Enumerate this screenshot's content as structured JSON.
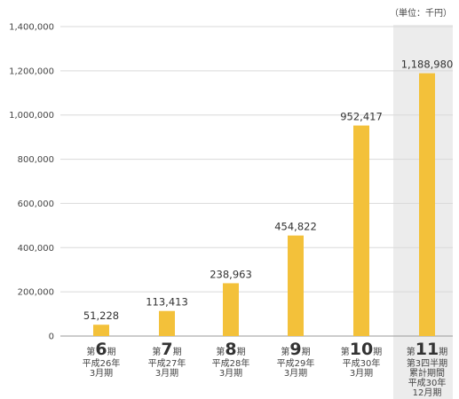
{
  "unit_note": "（単位：千円）",
  "chart_data": {
    "type": "bar",
    "color": "#F3C13A",
    "highlight_band_color": "#ECECEC",
    "grid": true,
    "ylim": [
      0,
      1400000
    ],
    "yticks": [
      "0",
      "200,000",
      "400,000",
      "600,000",
      "800,000",
      "1,000,000",
      "1,200,000",
      "1,400,000"
    ],
    "categories": [
      {
        "prefix": "第",
        "num": "6",
        "suffix": "期",
        "lines": [
          "平成26年",
          "3月期"
        ]
      },
      {
        "prefix": "第",
        "num": "7",
        "suffix": "期",
        "lines": [
          "平成27年",
          "3月期"
        ]
      },
      {
        "prefix": "第",
        "num": "8",
        "suffix": "期",
        "lines": [
          "平成28年",
          "3月期"
        ]
      },
      {
        "prefix": "第",
        "num": "9",
        "suffix": "期",
        "lines": [
          "平成29年",
          "3月期"
        ]
      },
      {
        "prefix": "第",
        "num": "10",
        "suffix": "期",
        "lines": [
          "平成30年",
          "3月期"
        ]
      },
      {
        "prefix": "第",
        "num": "11",
        "suffix": "期",
        "lines": [
          "第3四半期",
          "累計期間",
          "平成30年",
          "12月期"
        ]
      }
    ],
    "values": [
      51228,
      113413,
      238963,
      454822,
      952417,
      1188980
    ],
    "value_labels": [
      "51,228",
      "113,413",
      "238,963",
      "454,822",
      "952,417",
      "1,188,980"
    ],
    "highlight_index": 5
  }
}
